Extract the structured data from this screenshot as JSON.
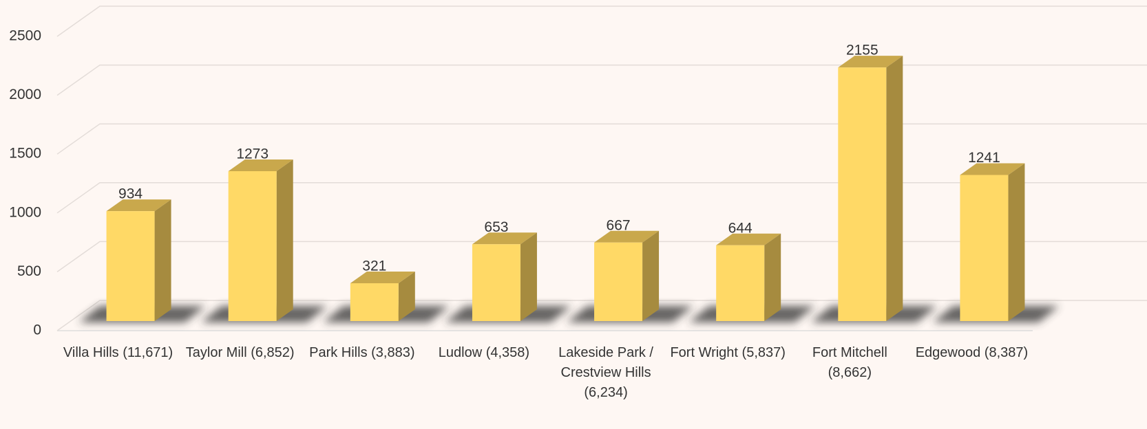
{
  "chart_data": {
    "type": "bar",
    "categories": [
      "Villa Hills (11,671)",
      "Taylor Mill (6,852)",
      "Park Hills (3,883)",
      "Ludlow (4,358)",
      "Lakeside Park / Crestview Hills (6,234)",
      "Fort Wright (5,837)",
      "Fort Mitchell (8,662)",
      "Edgewood (8,387)"
    ],
    "values": [
      934,
      1273,
      321,
      653,
      667,
      644,
      2155,
      1241
    ],
    "color": "#FFD966",
    "ylim": [
      0,
      2500
    ],
    "yticks": [
      0,
      500,
      1000,
      1500,
      2000,
      2500
    ],
    "grid": true
  }
}
